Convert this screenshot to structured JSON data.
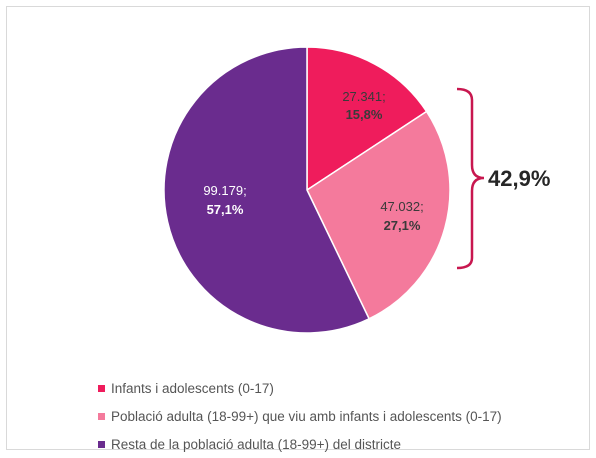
{
  "chart_data": {
    "type": "pie",
    "series": [
      {
        "name": "Infants i adolescents (0-17)",
        "value": 27341,
        "value_label": "27.341;",
        "percent_label": "15,8%",
        "color": "#ef1c5c"
      },
      {
        "name": "Població adulta (18-99+) que viu amb infants i adolescents (0-17)",
        "value": 47032,
        "value_label": "47.032;",
        "percent_label": "27,1%",
        "color": "#f47a9c"
      },
      {
        "name": "Resta de la població adulta (18-99+) del districte",
        "value": 99179,
        "value_label": "99.179;",
        "percent_label": "57,1%",
        "color": "#6a2c8e"
      }
    ],
    "bracket_annotation": "42,9%",
    "legend_position": "bottom-left"
  },
  "colors": {
    "bracket": "#c8174f",
    "slice_border": "#ffffff"
  }
}
